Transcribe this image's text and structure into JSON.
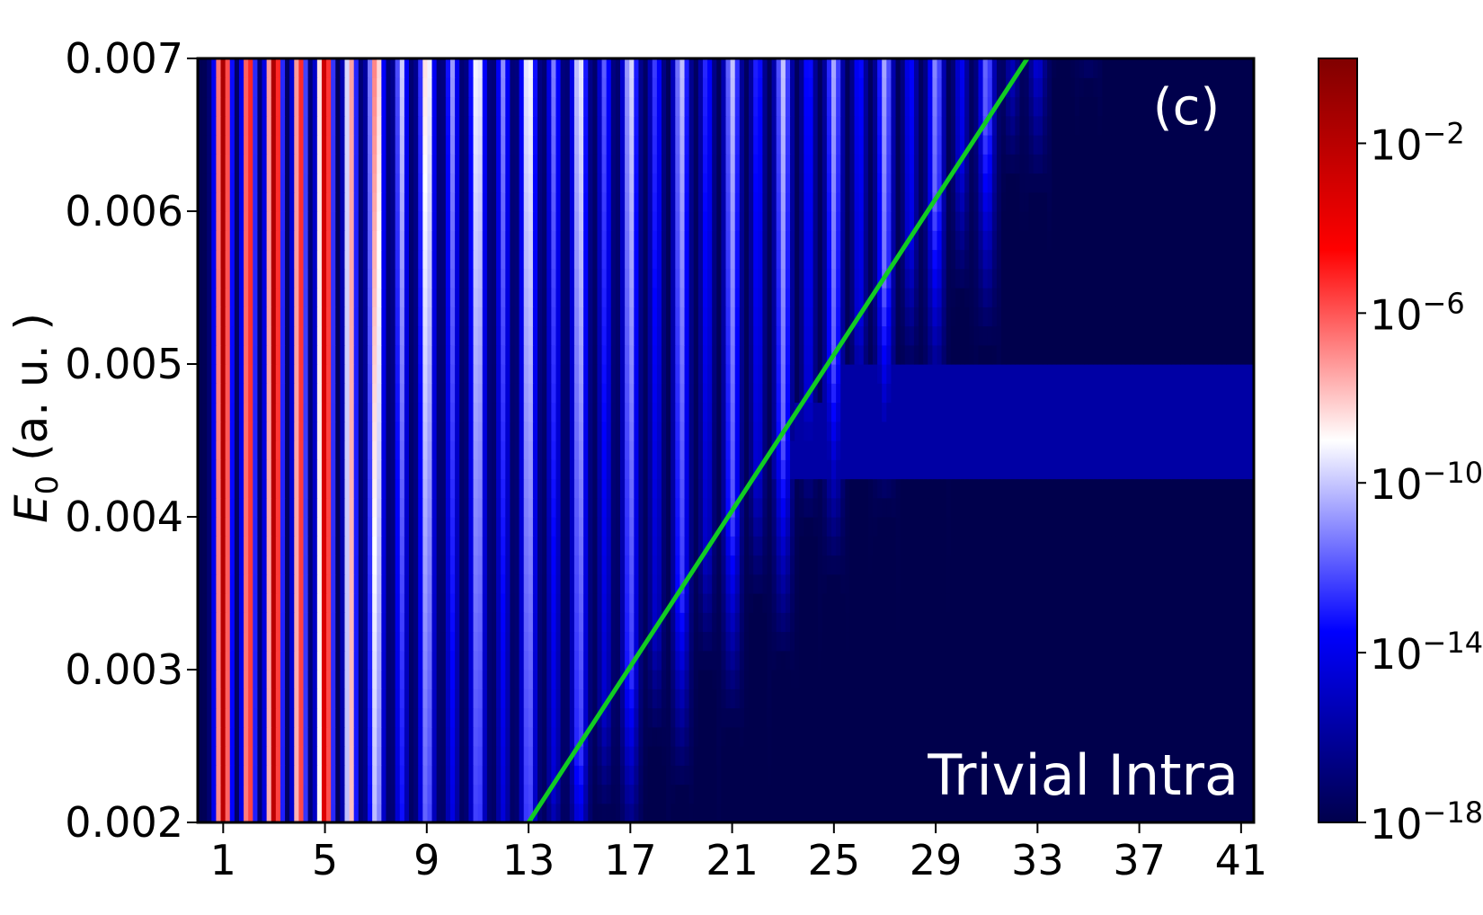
{
  "chart_data": {
    "type": "heatmap",
    "panel_label": "(c)",
    "annotation": "Trivial Intra",
    "xlabel": "",
    "ylabel_main": "E",
    "ylabel_sub": "0",
    "ylabel_unit": " (a. u. )",
    "x_range": [
      0.0,
      41.5
    ],
    "y_range": [
      0.002,
      0.007
    ],
    "x_ticks": [
      1,
      5,
      9,
      13,
      17,
      21,
      25,
      29,
      33,
      37,
      41
    ],
    "x_tick_labels": [
      "1",
      "5",
      "9",
      "13",
      "17",
      "21",
      "25",
      "29",
      "33",
      "37",
      "41"
    ],
    "y_ticks": [
      0.002,
      0.003,
      0.004,
      0.005,
      0.006,
      0.007
    ],
    "y_tick_labels": [
      "0.002",
      "0.003",
      "0.004",
      "0.005",
      "0.006",
      "0.007"
    ],
    "colorbar": {
      "scale": "log",
      "range_exponent": [
        -18,
        0
      ],
      "colormap": "seismic",
      "tick_exponents": [
        -2,
        -6,
        -10,
        -14,
        -18
      ],
      "tick_base": "10",
      "tick_labels_exp": [
        "−2",
        "−6",
        "−10",
        "−14",
        "−18"
      ]
    },
    "cutoff_line": {
      "color": "#11cc22",
      "points": [
        [
          13.0,
          0.002
        ],
        [
          32.6,
          0.007
        ]
      ]
    },
    "harmonic_peak_log10_at_max_field": [
      [
        1,
        -1.5
      ],
      [
        3,
        -1.5
      ],
      [
        5,
        -2.5
      ],
      [
        7,
        -6.5
      ],
      [
        9,
        -8.0
      ],
      [
        11,
        -8.5
      ],
      [
        13,
        -8.5
      ],
      [
        15,
        -9.0
      ],
      [
        17,
        -9.5
      ],
      [
        19,
        -10.0
      ],
      [
        21,
        -10.0
      ],
      [
        23,
        -10.0
      ],
      [
        25,
        -10.5
      ],
      [
        27,
        -10.5
      ],
      [
        29,
        -11.0
      ],
      [
        31,
        -11.5
      ],
      [
        33,
        -14.0
      ],
      [
        35,
        -15.0
      ],
      [
        37,
        -16.0
      ],
      [
        39,
        -16.5
      ],
      [
        41,
        -17.0
      ]
    ],
    "grid": false
  }
}
